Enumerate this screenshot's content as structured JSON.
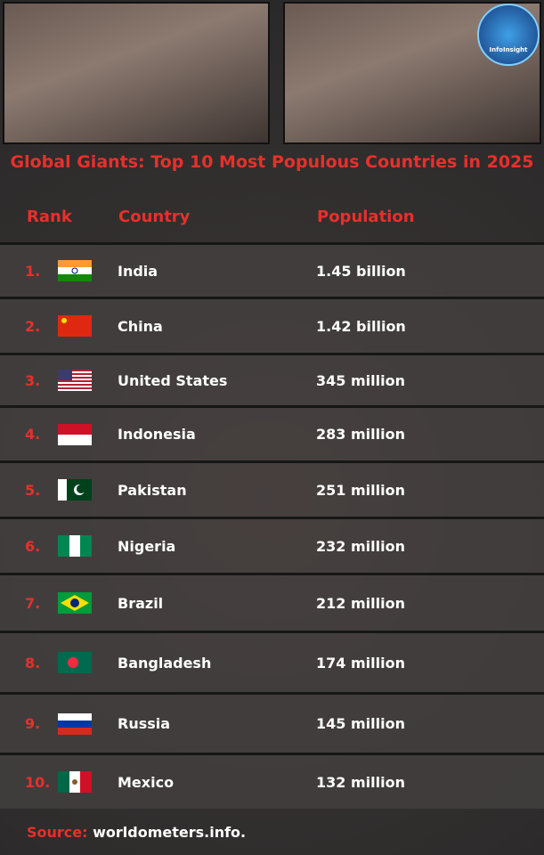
{
  "logo": "InfoInsight",
  "title": "Global Giants: Top 10 Most Populous Countries in 2025",
  "table": {
    "header": [
      "Rank",
      "Country",
      "Population"
    ],
    "rows": [
      [
        "1.",
        "India",
        "1.45 billion"
      ],
      [
        "2.",
        "China",
        "1.42 billion"
      ],
      [
        "3.",
        "United States",
        "345 million"
      ],
      [
        "4.",
        "Indonesia",
        "283 million"
      ],
      [
        "5.",
        "Pakistan",
        "251 million"
      ],
      [
        "6.",
        "Nigeria",
        "232 million"
      ],
      [
        "7.",
        "Brazil",
        "212 million"
      ],
      [
        "8.",
        "Bangladesh",
        "174 million"
      ],
      [
        "9.",
        "Russia",
        "145 million"
      ],
      [
        "10.",
        "Mexico",
        "132 million"
      ]
    ]
  },
  "source": {
    "label": "Source:",
    "text": "worldometers.info."
  }
}
